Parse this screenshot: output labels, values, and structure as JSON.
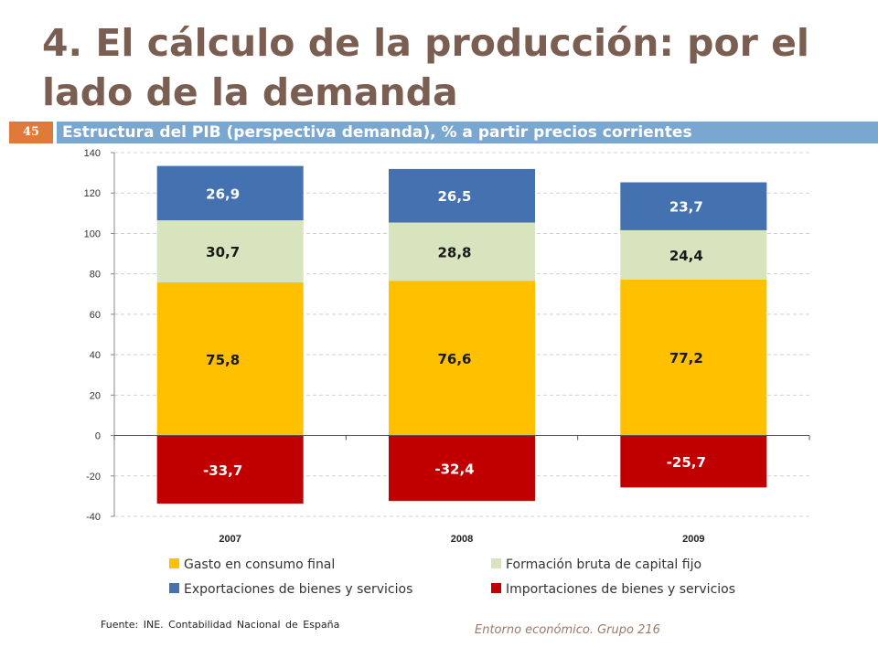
{
  "slide": {
    "title": "4. El cálculo de la producción: por el lado de la demanda",
    "page_number": "45",
    "subtitle": "Estructura del PIB (perspectiva demanda), % a partir precios corrientes",
    "source": "Fuente: INE. Contabilidad Nacional de España",
    "footer_note": "Entorno económico. Grupo 216"
  },
  "chart_data": {
    "type": "bar",
    "stacked": true,
    "categories": [
      "2007",
      "2008",
      "2009"
    ],
    "series": [
      {
        "name": "Gasto en consumo final",
        "values": [
          75.8,
          76.6,
          77.2
        ],
        "labels": [
          "75,8",
          "76,6",
          "77,2"
        ],
        "color": "#ffc000",
        "label_color": "#1a1a1a"
      },
      {
        "name": "Formación bruta de capital fijo",
        "values": [
          30.7,
          28.8,
          24.4
        ],
        "labels": [
          "30,7",
          "28,8",
          "24,4"
        ],
        "color": "#d7e4bd",
        "label_color": "#1a1a1a"
      },
      {
        "name": "Exportaciones de bienes y servicios",
        "values": [
          26.9,
          26.5,
          23.7
        ],
        "labels": [
          "26,9",
          "26,5",
          "23,7"
        ],
        "color": "#4472b0",
        "label_color": "#ffffff"
      },
      {
        "name": "Importaciones de bienes y servicios",
        "values": [
          -33.7,
          -32.4,
          -25.7
        ],
        "labels": [
          "-33,7",
          "-32,4",
          "-25,7"
        ],
        "color": "#c00000",
        "label_color": "#ffffff"
      }
    ],
    "ylim": [
      -40,
      140
    ],
    "yticks": [
      "140",
      "120",
      "100",
      "80",
      "60",
      "40",
      "20",
      "0",
      "-20",
      "-40"
    ],
    "ytick_values": [
      140,
      120,
      100,
      80,
      60,
      40,
      20,
      0,
      -20,
      -40
    ],
    "xlabel": "",
    "ylabel": "",
    "grid": true,
    "legend_position": "bottom"
  }
}
